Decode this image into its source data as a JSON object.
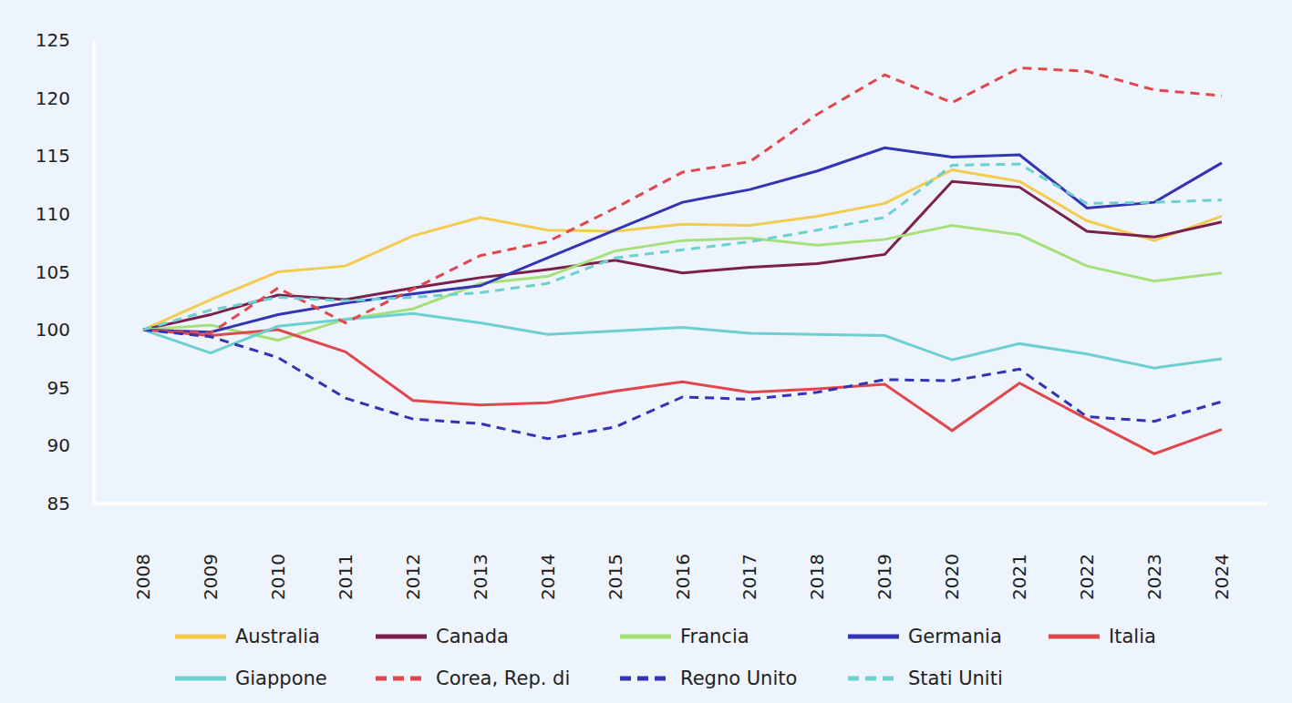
{
  "chart_data": {
    "type": "line",
    "categories": [
      "2008",
      "2009",
      "2010",
      "2011",
      "2012",
      "2013",
      "2014",
      "2015",
      "2016",
      "2017",
      "2018",
      "2019",
      "2020",
      "2021",
      "2022",
      "2023",
      "2024"
    ],
    "ylim": [
      85,
      125
    ],
    "yticks": [
      85,
      90,
      95,
      100,
      105,
      110,
      115,
      120,
      125
    ],
    "grid": false,
    "legend": "bottom",
    "series": [
      {
        "name": "Australia",
        "color": "#f2cc4f",
        "line_style": "solid",
        "values": [
          100,
          102.6,
          105.0,
          105.5,
          108.1,
          109.7,
          108.6,
          108.5,
          109.1,
          109.0,
          109.8,
          110.9,
          113.8,
          112.8,
          109.4,
          107.7,
          109.8
        ]
      },
      {
        "name": "Canada",
        "color": "#7b1f4f",
        "line_style": "solid",
        "values": [
          100,
          101.3,
          103.0,
          102.6,
          103.6,
          104.5,
          105.2,
          106.0,
          104.9,
          105.4,
          105.7,
          106.5,
          112.8,
          112.3,
          108.5,
          108.0,
          109.3
        ]
      },
      {
        "name": "Francia",
        "color": "#a6e07a",
        "line_style": "solid",
        "values": [
          100,
          100.4,
          99.1,
          100.9,
          101.8,
          104.0,
          104.6,
          106.8,
          107.7,
          107.9,
          107.3,
          107.8,
          109.0,
          108.2,
          105.5,
          104.2,
          104.9
        ]
      },
      {
        "name": "Germania",
        "color": "#3333b5",
        "line_style": "solid",
        "values": [
          100,
          99.8,
          101.3,
          102.3,
          103.1,
          103.8,
          106.2,
          108.6,
          111.0,
          112.1,
          113.7,
          115.7,
          114.9,
          115.1,
          110.5,
          111.0,
          114.4
        ]
      },
      {
        "name": "Italia",
        "color": "#e0474c",
        "line_style": "solid",
        "values": [
          100,
          99.5,
          100.0,
          98.1,
          93.9,
          93.5,
          93.7,
          94.7,
          95.5,
          94.6,
          94.9,
          95.3,
          91.3,
          95.4,
          92.3,
          89.3,
          91.4
        ]
      },
      {
        "name": "Giappone",
        "color": "#6ccfd0",
        "line_style": "solid",
        "values": [
          100,
          98.0,
          100.3,
          100.9,
          101.4,
          100.6,
          99.6,
          99.9,
          100.2,
          99.7,
          99.6,
          99.5,
          97.4,
          98.8,
          97.9,
          96.7,
          97.5
        ]
      },
      {
        "name": "Corea, Rep. di",
        "color": "#e0474c",
        "line_style": "dashed",
        "values": [
          100,
          99.7,
          103.6,
          100.6,
          103.5,
          106.4,
          107.6,
          110.5,
          113.6,
          114.5,
          118.6,
          122.0,
          119.6,
          122.6,
          122.3,
          120.7,
          120.2
        ]
      },
      {
        "name": "Regno Unito",
        "color": "#3333b5",
        "line_style": "dashed",
        "values": [
          100,
          99.4,
          97.6,
          94.1,
          92.3,
          91.9,
          90.6,
          91.6,
          94.2,
          94.0,
          94.6,
          95.7,
          95.6,
          96.6,
          92.5,
          92.1,
          93.8
        ]
      },
      {
        "name": "Stati Uniti",
        "color": "#6ccfd0",
        "line_style": "dashed",
        "values": [
          100,
          101.7,
          102.8,
          102.5,
          102.8,
          103.2,
          104.0,
          106.2,
          106.9,
          107.6,
          108.6,
          109.7,
          114.2,
          114.3,
          110.9,
          111.0,
          111.2
        ]
      }
    ]
  }
}
